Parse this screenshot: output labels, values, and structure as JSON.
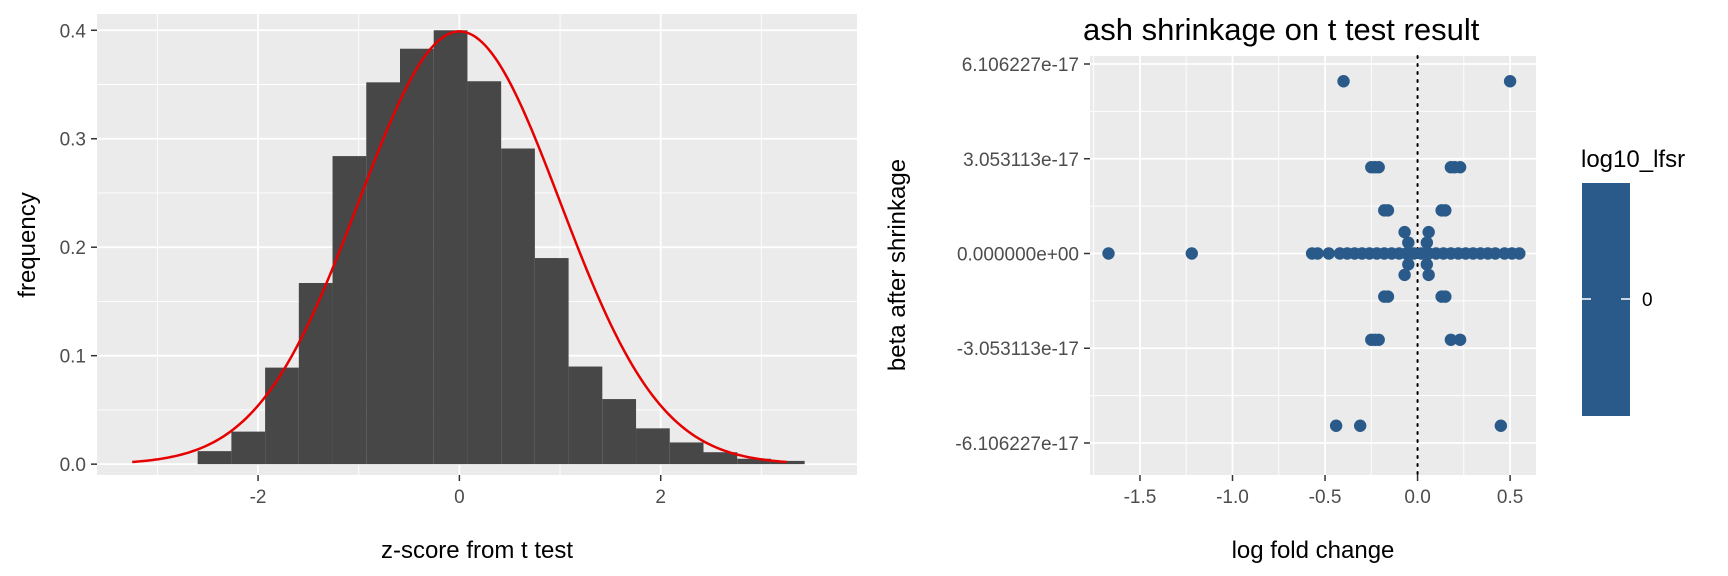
{
  "chart_data": [
    {
      "type": "bar",
      "xlabel": "z-score from t test",
      "ylabel": "frequency",
      "xlim": [
        -3.6,
        3.95
      ],
      "ylim": [
        -0.01,
        0.415
      ],
      "x_ticks": [
        -2,
        0,
        2
      ],
      "x_tick_labels": [
        "-2",
        "0",
        "2"
      ],
      "y_ticks": [
        0.0,
        0.1,
        0.2,
        0.3,
        0.4
      ],
      "y_tick_labels": [
        "0.0",
        "0.1",
        "0.2",
        "0.3",
        "0.4"
      ],
      "grid": true,
      "bin_edges": [
        -2.6,
        -2.265,
        -1.93,
        -1.595,
        -1.26,
        -0.925,
        -0.59,
        -0.255,
        0.08,
        0.415,
        0.75,
        1.085,
        1.42,
        1.755,
        2.09,
        2.425,
        2.76,
        3.095,
        3.43
      ],
      "values": [
        0.012,
        0.03,
        0.089,
        0.167,
        0.284,
        0.352,
        0.383,
        0.4,
        0.353,
        0.291,
        0.19,
        0.09,
        0.06,
        0.033,
        0.02,
        0.011,
        0.005,
        0.003
      ],
      "fill_color": "#474747",
      "curve": {
        "type": "normal_density",
        "mean": 0,
        "sd": 1,
        "x_range": [
          -3.25,
          3.25
        ],
        "color": "#e60000"
      }
    },
    {
      "type": "scatter",
      "title": "ash shrinkage on t test result",
      "xlabel": "log fold change",
      "ylabel": "beta after shrinkage",
      "xlim": [
        -1.77,
        0.64
      ],
      "ylim": [
        -6.106227e-17,
        6.106227e-17
      ],
      "x_ticks": [
        -1.5,
        -1.0,
        -0.5,
        0.0,
        0.5
      ],
      "x_tick_labels": [
        "-1.5",
        "-1.0",
        "-0.5",
        "0.0",
        "0.5"
      ],
      "y_ticks": [
        -6.106227e-17,
        -3.053113e-17,
        0,
        3.053113e-17,
        6.106227e-17
      ],
      "y_tick_labels": [
        "-6.106227e-17",
        "-3.053113e-17",
        "0.000000e+00",
        "3.053113e-17",
        "6.106227e-17"
      ],
      "grid": true,
      "point_color": "#2a5a8a",
      "vline": {
        "x": 0,
        "style": "dotted"
      },
      "points": [
        [
          -0.4,
          5.55e-17
        ],
        [
          0.5,
          5.55e-17
        ],
        [
          -0.25,
          2.78e-17
        ],
        [
          -0.23,
          2.78e-17
        ],
        [
          -0.21,
          2.78e-17
        ],
        [
          0.18,
          2.78e-17
        ],
        [
          0.2,
          2.78e-17
        ],
        [
          0.23,
          2.78e-17
        ],
        [
          -0.18,
          1.39e-17
        ],
        [
          -0.16,
          1.39e-17
        ],
        [
          0.13,
          1.39e-17
        ],
        [
          0.15,
          1.39e-17
        ],
        [
          -0.07,
          6.9e-18
        ],
        [
          0.06,
          6.9e-18
        ],
        [
          -0.05,
          3.5e-18
        ],
        [
          0.05,
          3.5e-18
        ],
        [
          -1.67,
          0
        ],
        [
          -1.22,
          0
        ],
        [
          -0.57,
          0
        ],
        [
          -0.54,
          0
        ],
        [
          -0.48,
          0
        ],
        [
          -0.42,
          0
        ],
        [
          -0.38,
          0
        ],
        [
          -0.34,
          0
        ],
        [
          -0.3,
          0
        ],
        [
          -0.26,
          0
        ],
        [
          -0.22,
          0
        ],
        [
          -0.18,
          0
        ],
        [
          -0.14,
          0
        ],
        [
          -0.1,
          0
        ],
        [
          -0.06,
          0
        ],
        [
          -0.02,
          0
        ],
        [
          0.02,
          0
        ],
        [
          0.06,
          0
        ],
        [
          0.1,
          0
        ],
        [
          0.14,
          0
        ],
        [
          0.18,
          0
        ],
        [
          0.22,
          0
        ],
        [
          0.26,
          0
        ],
        [
          0.3,
          0
        ],
        [
          0.34,
          0
        ],
        [
          0.38,
          0
        ],
        [
          0.42,
          0
        ],
        [
          0.47,
          0
        ],
        [
          0.51,
          0
        ],
        [
          0.55,
          0
        ],
        [
          -0.05,
          -3.5e-18
        ],
        [
          0.05,
          -3.5e-18
        ],
        [
          -0.07,
          -6.9e-18
        ],
        [
          0.06,
          -6.9e-18
        ],
        [
          -0.18,
          -1.39e-17
        ],
        [
          -0.16,
          -1.39e-17
        ],
        [
          0.13,
          -1.39e-17
        ],
        [
          0.15,
          -1.39e-17
        ],
        [
          -0.25,
          -2.78e-17
        ],
        [
          -0.23,
          -2.78e-17
        ],
        [
          -0.21,
          -2.78e-17
        ],
        [
          0.18,
          -2.78e-17
        ],
        [
          0.23,
          -2.78e-17
        ],
        [
          -0.44,
          -5.55e-17
        ],
        [
          -0.31,
          -5.55e-17
        ],
        [
          0.45,
          -5.55e-17
        ]
      ],
      "legend": {
        "title": "log10_lfsr",
        "label": "0",
        "color": "#2a5a8a",
        "position": "right"
      }
    }
  ]
}
